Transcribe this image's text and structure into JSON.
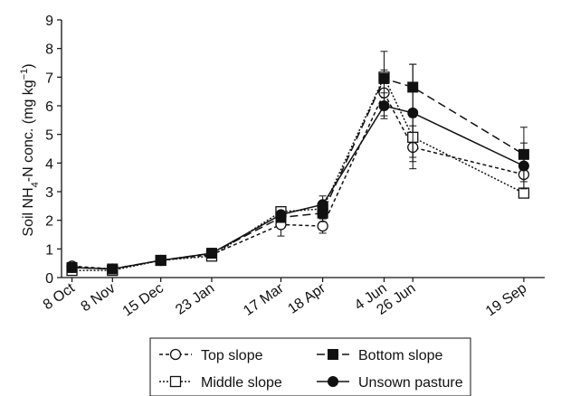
{
  "chart_data": {
    "type": "line",
    "ylabel_parts": [
      "Soil NH",
      "4",
      "-N conc. (mg kg",
      "−1",
      ")"
    ],
    "ylim": [
      0,
      9
    ],
    "yticks": [
      0,
      1,
      2,
      3,
      4,
      5,
      6,
      7,
      8,
      9
    ],
    "categories": [
      "8 Oct",
      "8 Nov",
      "15 Dec",
      "23 Jan",
      "17 Mar",
      "18 Apr",
      "4 Jun",
      "26 Jun",
      "19 Sep"
    ],
    "x_days": [
      0,
      31,
      68,
      107,
      160,
      192,
      239,
      261,
      346
    ],
    "x_range_days": [
      -8,
      362
    ],
    "grid": false,
    "legend_position": "bottom-center",
    "series": [
      {
        "name": "Top slope",
        "marker": "circle-open",
        "dash": "4,3",
        "color": "#111111",
        "values": [
          0.4,
          0.3,
          0.6,
          0.8,
          1.85,
          1.8,
          6.45,
          4.55,
          3.6
        ],
        "errors": [
          0,
          0,
          0,
          0,
          0.4,
          0.25,
          0.8,
          0.75,
          0.55
        ]
      },
      {
        "name": "Middle slope",
        "marker": "square-open",
        "dash": "2,2",
        "color": "#111111",
        "values": [
          0.25,
          0.25,
          0.6,
          0.75,
          2.3,
          2.4,
          7.0,
          4.9,
          2.95
        ],
        "errors": [
          0,
          0,
          0,
          0,
          0,
          0.2,
          0.9,
          0.7,
          0
        ]
      },
      {
        "name": "Bottom slope",
        "marker": "square-filled",
        "dash": "9,5",
        "color": "#111111",
        "values": [
          0.35,
          0.3,
          0.6,
          0.85,
          2.1,
          2.25,
          6.95,
          6.65,
          4.3
        ],
        "errors": [
          0,
          0,
          0,
          0,
          0,
          0.3,
          0,
          0.8,
          0.95
        ]
      },
      {
        "name": "Unsown pasture",
        "marker": "circle-filled",
        "dash": "",
        "color": "#111111",
        "values": [
          0.35,
          0.3,
          0.6,
          0.85,
          2.2,
          2.55,
          6.0,
          5.75,
          3.9
        ],
        "errors": [
          0,
          0,
          0,
          0,
          0,
          0.3,
          0.45,
          1.7,
          0.8
        ]
      }
    ]
  }
}
